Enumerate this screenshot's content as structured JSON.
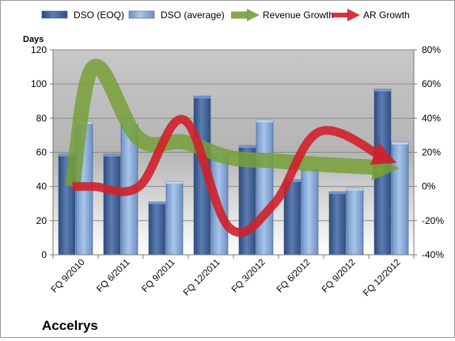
{
  "chart_data": {
    "type": "bar",
    "title": "Accelrys",
    "ylabel": "Days",
    "ylim": [
      0,
      120
    ],
    "yticks": [
      0,
      20,
      40,
      60,
      80,
      100,
      120
    ],
    "y2lim": [
      -0.4,
      0.8
    ],
    "y2ticks": [
      "-40%",
      "-20%",
      "0%",
      "20%",
      "40%",
      "60%",
      "80%"
    ],
    "y2tick_values": [
      -0.4,
      -0.2,
      0,
      0.2,
      0.4,
      0.6,
      0.8
    ],
    "categories": [
      "FQ 9/2010",
      "FQ 6/2011",
      "FQ 9/2011",
      "FQ 12/2011",
      "FQ 3/2012",
      "FQ 6/2012",
      "FQ 9/2012",
      "FQ 12/2012"
    ],
    "grid": true,
    "legend_position": "top",
    "series": [
      {
        "name": "DSO (EOQ)",
        "kind": "bar",
        "axis": "left",
        "color": "#4f6fa3",
        "values": [
          59,
          59,
          31,
          93,
          64,
          44,
          37,
          97
        ]
      },
      {
        "name": "DSO (average)",
        "kind": "bar",
        "axis": "left",
        "color": "#8fb0dc",
        "values": [
          78,
          78,
          43,
          61,
          79,
          52,
          39,
          66
        ]
      },
      {
        "name": "Revenue Growth",
        "kind": "line",
        "axis": "right",
        "color": "#77a03a",
        "values": [
          0.0,
          0.7,
          0.28,
          0.26,
          0.17,
          0.15,
          0.13,
          0.11
        ]
      },
      {
        "name": "AR Growth",
        "kind": "line",
        "axis": "right",
        "color": "#d0202a",
        "values": [
          0.0,
          0.0,
          0.0,
          0.39,
          -0.24,
          -0.1,
          0.32,
          0.17
        ]
      }
    ]
  }
}
